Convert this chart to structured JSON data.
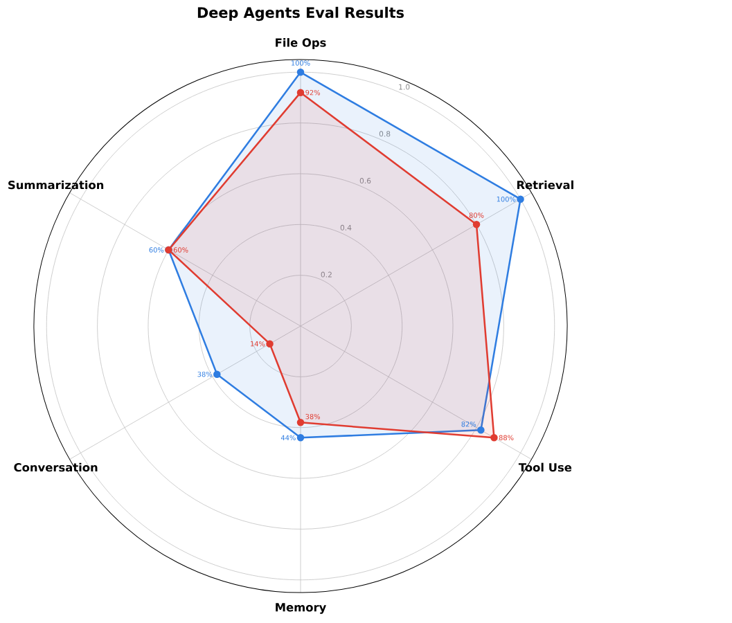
{
  "chart_data": {
    "type": "radar",
    "title": "Deep Agents Eval Results",
    "categories": [
      "File Ops",
      "Retrieval",
      "Tool Use",
      "Memory",
      "Conversation",
      "Summarization"
    ],
    "series": [
      {
        "color": "#2f7de1",
        "values": [
          1.0,
          1.0,
          0.82,
          0.44,
          0.38,
          0.6
        ],
        "value_labels": [
          "100%",
          "100%",
          "82%",
          "44%",
          "38%",
          "60%"
        ]
      },
      {
        "color": "#e03c31",
        "values": [
          0.92,
          0.8,
          0.88,
          0.38,
          0.14,
          0.6
        ],
        "value_labels": [
          "92%",
          "80%",
          "88%",
          "38%",
          "14%",
          "60%"
        ]
      }
    ],
    "ylim": [
      0,
      1.05
    ],
    "yticks": [
      0.2,
      0.4,
      0.6,
      0.8,
      {
        "value": 1,
        "label": "1.0"
      }
    ],
    "grid": true,
    "marker": "circle",
    "line_style": "solid"
  }
}
